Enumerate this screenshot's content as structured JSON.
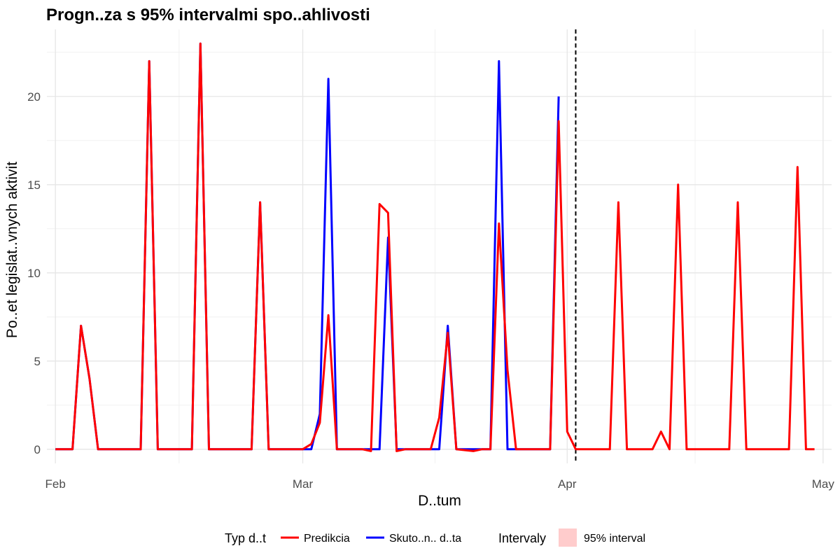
{
  "chart_data": {
    "type": "line",
    "title": "Progn..za s 95% intervalmi spo..ahlivosti",
    "xlabel": "D..tum",
    "ylabel": "Po..et legislat..vnych aktivit",
    "xlim": [
      "2024-01-31",
      "2024-05-02"
    ],
    "ylim": [
      -0.8,
      23.8
    ],
    "x_ticks": [
      {
        "label": "Feb",
        "date": "2024-02-01"
      },
      {
        "label": "Mar",
        "date": "2024-03-01"
      },
      {
        "label": "Apr",
        "date": "2024-04-01"
      },
      {
        "label": "May",
        "date": "2024-05-01"
      }
    ],
    "y_ticks": [
      0,
      5,
      10,
      15,
      20
    ],
    "grid": true,
    "legend_position": "bottom",
    "forecast_start": "2024-04-02",
    "series": [
      {
        "name": "Skuto..n.. d..ta",
        "color": "#0000ff",
        "points": [
          [
            "2024-02-01",
            0
          ],
          [
            "2024-02-03",
            0
          ],
          [
            "2024-02-04",
            7
          ],
          [
            "2024-02-05",
            4
          ],
          [
            "2024-02-06",
            0
          ],
          [
            "2024-02-11",
            0
          ],
          [
            "2024-02-12",
            22
          ],
          [
            "2024-02-13",
            0
          ],
          [
            "2024-02-17",
            0
          ],
          [
            "2024-02-18",
            23
          ],
          [
            "2024-02-19",
            0
          ],
          [
            "2024-02-24",
            0
          ],
          [
            "2024-02-25",
            14
          ],
          [
            "2024-02-26",
            0
          ],
          [
            "2024-03-01",
            0
          ],
          [
            "2024-03-02",
            0
          ],
          [
            "2024-03-03",
            2
          ],
          [
            "2024-03-04",
            21
          ],
          [
            "2024-03-05",
            0
          ],
          [
            "2024-03-09",
            0
          ],
          [
            "2024-03-10",
            0
          ],
          [
            "2024-03-11",
            12
          ],
          [
            "2024-03-12",
            0
          ],
          [
            "2024-03-17",
            0
          ],
          [
            "2024-03-18",
            7
          ],
          [
            "2024-03-19",
            0
          ],
          [
            "2024-03-23",
            0
          ],
          [
            "2024-03-24",
            22
          ],
          [
            "2024-03-25",
            0
          ],
          [
            "2024-03-30",
            0
          ],
          [
            "2024-03-31",
            20
          ]
        ]
      },
      {
        "name": "Predikcia",
        "color": "#ff0000",
        "points": [
          [
            "2024-02-01",
            0
          ],
          [
            "2024-02-03",
            0
          ],
          [
            "2024-02-04",
            7
          ],
          [
            "2024-02-05",
            4
          ],
          [
            "2024-02-06",
            0
          ],
          [
            "2024-02-11",
            0
          ],
          [
            "2024-02-12",
            22
          ],
          [
            "2024-02-13",
            0
          ],
          [
            "2024-02-17",
            0
          ],
          [
            "2024-02-18",
            23
          ],
          [
            "2024-02-19",
            0
          ],
          [
            "2024-02-24",
            0
          ],
          [
            "2024-02-25",
            14
          ],
          [
            "2024-02-26",
            0
          ],
          [
            "2024-03-01",
            0
          ],
          [
            "2024-03-02",
            0.3
          ],
          [
            "2024-03-03",
            1.5
          ],
          [
            "2024-03-04",
            7.6
          ],
          [
            "2024-03-05",
            0
          ],
          [
            "2024-03-08",
            0
          ],
          [
            "2024-03-09",
            -0.1
          ],
          [
            "2024-03-10",
            13.9
          ],
          [
            "2024-03-11",
            13.4
          ],
          [
            "2024-03-12",
            -0.1
          ],
          [
            "2024-03-13",
            0
          ],
          [
            "2024-03-16",
            0
          ],
          [
            "2024-03-17",
            1.8
          ],
          [
            "2024-03-18",
            6.6
          ],
          [
            "2024-03-19",
            0
          ],
          [
            "2024-03-21",
            -0.1
          ],
          [
            "2024-03-22",
            0
          ],
          [
            "2024-03-23",
            0
          ],
          [
            "2024-03-24",
            12.8
          ],
          [
            "2024-03-25",
            4.5
          ],
          [
            "2024-03-26",
            0
          ],
          [
            "2024-03-30",
            0
          ],
          [
            "2024-03-31",
            18.6
          ],
          [
            "2024-04-01",
            1
          ],
          [
            "2024-04-02",
            0
          ],
          [
            "2024-04-06",
            0
          ],
          [
            "2024-04-07",
            14
          ],
          [
            "2024-04-08",
            0
          ],
          [
            "2024-04-11",
            0
          ],
          [
            "2024-04-12",
            1
          ],
          [
            "2024-04-13",
            0
          ],
          [
            "2024-04-14",
            15
          ],
          [
            "2024-04-15",
            0
          ],
          [
            "2024-04-20",
            0
          ],
          [
            "2024-04-21",
            14
          ],
          [
            "2024-04-22",
            0
          ],
          [
            "2024-04-27",
            0
          ],
          [
            "2024-04-28",
            16
          ],
          [
            "2024-04-29",
            0
          ],
          [
            "2024-04-30",
            0
          ]
        ]
      }
    ],
    "legend": {
      "type_title": "Typ d..t",
      "type_items": [
        {
          "label": "Predikcia",
          "color": "#ff0000"
        },
        {
          "label": "Skuto..n.. d..ta",
          "color": "#0000ff"
        }
      ],
      "interval_title": "Intervaly",
      "interval_items": [
        {
          "label": "95% interval",
          "color": "#ffcccc"
        }
      ]
    }
  }
}
